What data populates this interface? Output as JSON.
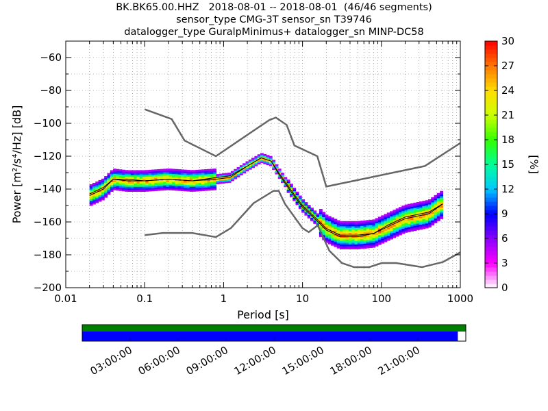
{
  "title": {
    "line1": "BK.BK65.00.HHZ   2018-08-01 -- 2018-08-01  (46/46 segments)",
    "line2": "sensor_type CMG-3T sensor_sn T39746",
    "line3": "datalogger_type GuralpMinimus+ datalogger_sn MINP-DC58"
  },
  "chart_data": [
    {
      "type": "heatmap",
      "name": "probabilistic-psd",
      "xlabel": "Period [s]",
      "ylabel": "Power [m²/s⁴/Hz] [dB]",
      "xscale": "log",
      "xlim": [
        0.01,
        1000
      ],
      "ylim": [
        -200,
        -50
      ],
      "x_ticks": [
        0.01,
        0.1,
        1,
        10,
        100,
        1000
      ],
      "x_tick_labels": [
        "0.01",
        "0.1",
        "1",
        "10",
        "100",
        "1000"
      ],
      "y_ticks": [
        -200,
        -180,
        -160,
        -140,
        -120,
        -100,
        -80,
        -60
      ],
      "y_tick_labels": [
        "−200",
        "−180",
        "−160",
        "−140",
        "−120",
        "−100",
        "−80",
        "−60"
      ],
      "grid": "dotted, log minor x lines",
      "colorbar": {
        "label": "[%]",
        "range": [
          0,
          30
        ],
        "ticks": [
          0,
          3,
          6,
          9,
          12,
          15,
          18,
          21,
          24,
          27,
          30
        ],
        "colors": [
          "#ffffff",
          "#ff00ff",
          "#8800ff",
          "#0000ff",
          "#00c8ff",
          "#00ff99",
          "#33ff00",
          "#ccff00",
          "#ffdd00",
          "#ff7700",
          "#ff0000"
        ]
      },
      "series": [
        {
          "name": "nhnm",
          "x": [
            0.1,
            0.22,
            0.32,
            0.8,
            3.8,
            4.6,
            6.3,
            7.9,
            15.4,
            20,
            354.8,
            1000
          ],
          "y": [
            -91.5,
            -97.4,
            -110.5,
            -120,
            -98,
            -96.5,
            -101,
            -113.5,
            -120,
            -138.5,
            -126,
            -112
          ]
        },
        {
          "name": "nlnm",
          "x": [
            0.1,
            0.17,
            0.4,
            0.8,
            1.24,
            2.4,
            4.3,
            5,
            6,
            10,
            12,
            15.6,
            21.9,
            31.6,
            45,
            70,
            101,
            154,
            328,
            600,
            1000
          ],
          "y": [
            -168,
            -166.7,
            -166.7,
            -169.2,
            -163.7,
            -148.6,
            -141.1,
            -141.1,
            -149,
            -163.8,
            -166.2,
            -162.1,
            -177.5,
            -185,
            -187.5,
            -187.5,
            -185,
            -185,
            -187.5,
            -184.4,
            -178.5
          ]
        },
        {
          "name": "mode",
          "x": [
            0.02,
            0.03,
            0.04,
            0.06,
            0.1,
            0.2,
            0.4,
            0.8,
            1.2,
            2,
            3,
            4,
            5,
            7,
            10,
            15,
            20,
            30,
            50,
            80,
            120,
            200,
            400,
            600
          ],
          "y": [
            -144,
            -140,
            -134,
            -135,
            -135,
            -134,
            -135,
            -134,
            -133,
            -126,
            -121,
            -123,
            -130,
            -140,
            -150,
            -158,
            -164,
            -168,
            -168,
            -167,
            -163,
            -158,
            -155,
            -149
          ]
        },
        {
          "name": "mean",
          "x": [
            0.02,
            0.03,
            0.04,
            0.06,
            0.1,
            0.2,
            0.4,
            0.8,
            1.2,
            2,
            3,
            4,
            5,
            7,
            10,
            15,
            20,
            30,
            50,
            80,
            120,
            200,
            400,
            600
          ],
          "y": [
            -143,
            -139,
            -134,
            -134,
            -135,
            -134,
            -135,
            -133,
            -132,
            -126,
            -121,
            -123,
            -131,
            -141,
            -151,
            -159,
            -165,
            -169,
            -169,
            -167,
            -162,
            -157,
            -154,
            -149
          ]
        }
      ]
    },
    {
      "type": "bar",
      "name": "data-coverage",
      "x_tick_labels": [
        "03:00:00",
        "06:00:00",
        "09:00:00",
        "12:00:00",
        "15:00:00",
        "18:00:00",
        "21:00:00"
      ],
      "x_tick_hours": [
        3,
        6,
        9,
        12,
        15,
        18,
        21
      ],
      "xlim_hours": [
        0,
        24
      ],
      "series": [
        {
          "color": "#008000",
          "start_hour": 0,
          "end_hour": 24
        },
        {
          "color": "#0000ff",
          "start_hour": 0,
          "end_hour": 23.5
        }
      ]
    }
  ]
}
